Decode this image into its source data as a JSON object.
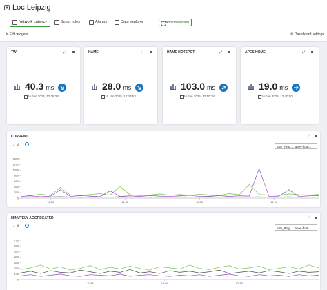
{
  "header": {
    "title": "Loc Leipzig"
  },
  "tabs": [
    "Network Latency",
    "Smart rules",
    "Alarms",
    "Data explorer"
  ],
  "add_dashboard": "Add dashboard",
  "toolbar": {
    "edit": "Edit widgets",
    "settings": "Dashboard settings"
  },
  "kpis": [
    {
      "title": "TWI",
      "value": "40.3",
      "unit": "ms",
      "date": "16 Jan 2025, 12:38:28",
      "trend": "down"
    },
    {
      "title": "HAME",
      "value": "28.0",
      "unit": "ms",
      "date": "16 Jan 2025, 12:23:53",
      "trend": "down"
    },
    {
      "title": "HAME HOTSPOT",
      "value": "103.0",
      "unit": "ms",
      "date": "16 Jan 2025, 12:10:38",
      "trend": "up"
    },
    {
      "title": "APES HOME",
      "value": "19.0",
      "unit": "ms",
      "date": "16 Jan 2025, 12:40:00",
      "trend": "flat"
    }
  ],
  "selectors": [
    "c8y_Ping → apes-hom...",
    "c8y_Ping → apes-hom..."
  ],
  "chart_data": [
    {
      "type": "line",
      "title": "CURRENT",
      "x": [
        684,
        686,
        688,
        690,
        692,
        694,
        696,
        698,
        700,
        702,
        704,
        706,
        708,
        710,
        712,
        714,
        716,
        718,
        720,
        722,
        724,
        726,
        728,
        730,
        732,
        734,
        736,
        738,
        740,
        742,
        744
      ],
      "xlim": [
        684,
        744
      ],
      "xticks": [
        {
          "value": 690,
          "label": "11:30"
        },
        {
          "value": 705,
          "label": "11:45"
        },
        {
          "value": 720,
          "label": "12:00"
        },
        {
          "value": 735,
          "label": "12:15"
        }
      ],
      "ylim": [
        0,
        1400
      ],
      "yticks": [
        0,
        200,
        400,
        600,
        800,
        1000,
        1200,
        1400
      ],
      "grid": false,
      "series": [
        {
          "color": "#6cc644",
          "values": [
            120,
            90,
            140,
            100,
            380,
            110,
            95,
            130,
            160,
            100,
            420,
            120,
            90,
            110,
            150,
            100,
            130,
            95,
            140,
            110,
            100,
            160,
            120,
            480,
            130,
            110,
            100,
            150,
            120,
            110,
            130
          ]
        },
        {
          "color": "#9747c9",
          "values": [
            60,
            80,
            50,
            70,
            300,
            60,
            90,
            70,
            50,
            260,
            60,
            80,
            60,
            90,
            70,
            60,
            80,
            100,
            60,
            70,
            90,
            60,
            80,
            70,
            1050,
            60,
            70,
            300,
            60,
            80,
            90
          ]
        },
        {
          "color": "#4a4a4a",
          "values": [
            30,
            40,
            35,
            45,
            50,
            40,
            30,
            45,
            40,
            35,
            50,
            40,
            45,
            30,
            40,
            35,
            45,
            40,
            35,
            50,
            40,
            45,
            35,
            40,
            45,
            35,
            40,
            45,
            40,
            35,
            40
          ]
        }
      ]
    },
    {
      "type": "line",
      "title": "MINUTELY AGGREGATED",
      "x": [
        691,
        693,
        695,
        697,
        699,
        701,
        703,
        705,
        707,
        709,
        711,
        713,
        715,
        717,
        719,
        721,
        723,
        725,
        727,
        729,
        731,
        733,
        735,
        737,
        739,
        741,
        743,
        745,
        747,
        749,
        751
      ],
      "xlim": [
        691,
        751
      ],
      "xticks": [
        {
          "value": 705,
          "label": "11:45"
        },
        {
          "value": 720,
          "label": "12:00"
        },
        {
          "value": 735,
          "label": "12:15"
        }
      ],
      "ylim": [
        0,
        700
      ],
      "yticks": [
        0,
        100,
        200,
        300,
        400,
        500,
        600,
        700
      ],
      "grid": false,
      "series": [
        {
          "color": "#6cc644",
          "values": [
            180,
            210,
            260,
            190,
            230,
            170,
            200,
            250,
            180,
            220,
            190,
            240,
            200,
            170,
            230,
            210,
            190,
            260,
            200,
            180,
            220,
            250,
            190,
            210,
            240,
            180,
            200,
            230,
            190,
            260,
            210
          ]
        },
        {
          "color": "#9747c9",
          "values": [
            70,
            90,
            60,
            80,
            100,
            70,
            60,
            90,
            80,
            70,
            100,
            60,
            80,
            90,
            70,
            60,
            80,
            70,
            90,
            60,
            80,
            100,
            70,
            60,
            90,
            70,
            80,
            60,
            90,
            70,
            80
          ]
        },
        {
          "color": "#4a4a4a",
          "values": [
            120,
            150,
            110,
            160,
            130,
            120,
            170,
            140,
            110,
            150,
            130,
            180,
            120,
            140,
            110,
            160,
            130,
            150,
            120,
            140,
            170,
            110,
            130,
            150,
            120,
            160,
            140,
            110,
            150,
            130,
            140
          ]
        }
      ]
    }
  ]
}
